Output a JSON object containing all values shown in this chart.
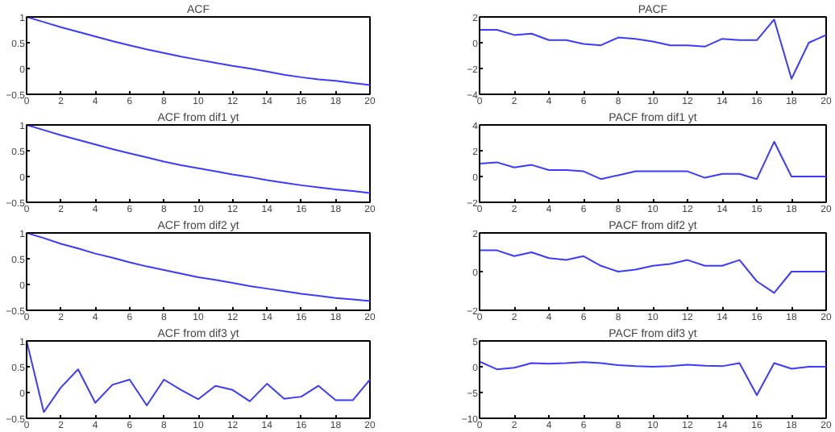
{
  "chart_data": [
    {
      "type": "line",
      "title": "ACF",
      "x": [
        0,
        1,
        2,
        3,
        4,
        5,
        6,
        7,
        8,
        9,
        10,
        11,
        12,
        13,
        14,
        15,
        16,
        17,
        18,
        19,
        20
      ],
      "xlim": [
        0,
        20
      ],
      "xticks": [
        0,
        2,
        4,
        6,
        8,
        10,
        12,
        14,
        16,
        18,
        20
      ],
      "ylim": [
        -0.5,
        1
      ],
      "yticks": [
        -0.5,
        0,
        0.5,
        1
      ],
      "grid": false,
      "series": [
        {
          "color": "#3b3bff",
          "values": [
            1,
            0.9,
            0.8,
            0.71,
            0.62,
            0.53,
            0.45,
            0.37,
            0.3,
            0.23,
            0.17,
            0.11,
            0.05,
            0,
            -0.06,
            -0.12,
            -0.17,
            -0.21,
            -0.24,
            -0.28,
            -0.32
          ]
        }
      ]
    },
    {
      "type": "line",
      "title": "PACF",
      "x": [
        0,
        1,
        2,
        3,
        4,
        5,
        6,
        7,
        8,
        9,
        10,
        11,
        12,
        13,
        14,
        15,
        16,
        17,
        18,
        19,
        20
      ],
      "xlim": [
        0,
        20
      ],
      "xticks": [
        0,
        2,
        4,
        6,
        8,
        10,
        12,
        14,
        16,
        18,
        20
      ],
      "ylim": [
        -4,
        2
      ],
      "yticks": [
        -4,
        -2,
        0,
        2
      ],
      "grid": false,
      "series": [
        {
          "color": "#3b3bff",
          "values": [
            1,
            1,
            0.6,
            0.7,
            0.2,
            0.2,
            -0.1,
            -0.2,
            0.4,
            0.3,
            0.1,
            -0.2,
            -0.2,
            -0.3,
            0.3,
            0.2,
            0.2,
            1.8,
            -2.8,
            0,
            0.6
          ]
        }
      ]
    },
    {
      "type": "line",
      "title": "ACF from dif1 yt",
      "x": [
        0,
        1,
        2,
        3,
        4,
        5,
        6,
        7,
        8,
        9,
        10,
        11,
        12,
        13,
        14,
        15,
        16,
        17,
        18,
        19,
        20
      ],
      "xlim": [
        0,
        20
      ],
      "xticks": [
        0,
        2,
        4,
        6,
        8,
        10,
        12,
        14,
        16,
        18,
        20
      ],
      "ylim": [
        -0.5,
        1
      ],
      "yticks": [
        -0.5,
        0,
        0.5,
        1
      ],
      "grid": false,
      "series": [
        {
          "color": "#3b3bff",
          "values": [
            1,
            0.9,
            0.8,
            0.71,
            0.62,
            0.53,
            0.45,
            0.37,
            0.29,
            0.22,
            0.16,
            0.1,
            0.04,
            -0.01,
            -0.07,
            -0.12,
            -0.17,
            -0.21,
            -0.25,
            -0.28,
            -0.32
          ]
        }
      ]
    },
    {
      "type": "line",
      "title": "PACF from dif1 yt",
      "x": [
        0,
        1,
        2,
        3,
        4,
        5,
        6,
        7,
        8,
        9,
        10,
        11,
        12,
        13,
        14,
        15,
        16,
        17,
        18,
        19,
        20
      ],
      "xlim": [
        0,
        20
      ],
      "xticks": [
        0,
        2,
        4,
        6,
        8,
        10,
        12,
        14,
        16,
        18,
        20
      ],
      "ylim": [
        -2,
        4
      ],
      "yticks": [
        -2,
        0,
        2,
        4
      ],
      "grid": false,
      "series": [
        {
          "color": "#3b3bff",
          "values": [
            1,
            1.1,
            0.7,
            0.9,
            0.5,
            0.5,
            0.4,
            -0.2,
            0.1,
            0.4,
            0.4,
            0.4,
            0.4,
            -0.1,
            0.2,
            0.2,
            -0.2,
            2.7,
            0,
            0,
            0
          ]
        }
      ]
    },
    {
      "type": "line",
      "title": "ACF from dif2 yt",
      "x": [
        0,
        1,
        2,
        3,
        4,
        5,
        6,
        7,
        8,
        9,
        10,
        11,
        12,
        13,
        14,
        15,
        16,
        17,
        18,
        19,
        20
      ],
      "xlim": [
        0,
        20
      ],
      "xticks": [
        0,
        2,
        4,
        6,
        8,
        10,
        12,
        14,
        16,
        18,
        20
      ],
      "ylim": [
        -0.5,
        1
      ],
      "yticks": [
        -0.5,
        0,
        0.5,
        1
      ],
      "grid": false,
      "series": [
        {
          "color": "#3b3bff",
          "values": [
            1,
            0.9,
            0.79,
            0.7,
            0.6,
            0.52,
            0.43,
            0.35,
            0.28,
            0.21,
            0.14,
            0.09,
            0.03,
            -0.03,
            -0.08,
            -0.13,
            -0.18,
            -0.22,
            -0.26,
            -0.29,
            -0.32
          ]
        }
      ]
    },
    {
      "type": "line",
      "title": "PACF from dif2 yt",
      "x": [
        0,
        1,
        2,
        3,
        4,
        5,
        6,
        7,
        8,
        9,
        10,
        11,
        12,
        13,
        14,
        15,
        16,
        17,
        18,
        19,
        20
      ],
      "xlim": [
        0,
        20
      ],
      "xticks": [
        0,
        2,
        4,
        6,
        8,
        10,
        12,
        14,
        16,
        18,
        20
      ],
      "ylim": [
        -2,
        2
      ],
      "yticks": [
        -2,
        0,
        2
      ],
      "grid": false,
      "series": [
        {
          "color": "#3b3bff",
          "values": [
            1.1,
            1.1,
            0.8,
            1.0,
            0.7,
            0.6,
            0.8,
            0.3,
            0,
            0.1,
            0.3,
            0.4,
            0.6,
            0.3,
            0.3,
            0.6,
            -0.5,
            -1.1,
            0,
            0,
            0
          ]
        }
      ]
    },
    {
      "type": "line",
      "title": "ACF from dif3 yt",
      "x": [
        0,
        1,
        2,
        3,
        4,
        5,
        6,
        7,
        8,
        9,
        10,
        11,
        12,
        13,
        14,
        15,
        16,
        17,
        18,
        19,
        20
      ],
      "xlim": [
        0,
        20
      ],
      "xticks": [
        0,
        2,
        4,
        6,
        8,
        10,
        12,
        14,
        16,
        18,
        20
      ],
      "ylim": [
        -0.5,
        1
      ],
      "yticks": [
        -0.5,
        0,
        0.5,
        1
      ],
      "grid": false,
      "series": [
        {
          "color": "#3b3bff",
          "values": [
            1,
            -0.38,
            0.1,
            0.45,
            -0.2,
            0.15,
            0.25,
            -0.25,
            0.25,
            0.05,
            -0.13,
            0.13,
            0.05,
            -0.17,
            0.17,
            -0.12,
            -0.08,
            0.13,
            -0.15,
            -0.15,
            0.25
          ]
        }
      ]
    },
    {
      "type": "line",
      "title": "PACF from dif3 yt",
      "x": [
        0,
        1,
        2,
        3,
        4,
        5,
        6,
        7,
        8,
        9,
        10,
        11,
        12,
        13,
        14,
        15,
        16,
        17,
        18,
        19,
        20
      ],
      "xlim": [
        0,
        20
      ],
      "xticks": [
        0,
        2,
        4,
        6,
        8,
        10,
        12,
        14,
        16,
        18,
        20
      ],
      "ylim": [
        -10,
        5
      ],
      "yticks": [
        -10,
        -5,
        0,
        5
      ],
      "grid": false,
      "series": [
        {
          "color": "#3b3bff",
          "values": [
            1,
            -0.5,
            -0.2,
            0.7,
            0.6,
            0.7,
            0.9,
            0.7,
            0.3,
            0.1,
            0,
            0.1,
            0.4,
            0.2,
            0.1,
            0.7,
            -5.5,
            0.7,
            -0.4,
            0,
            0
          ]
        }
      ]
    }
  ]
}
